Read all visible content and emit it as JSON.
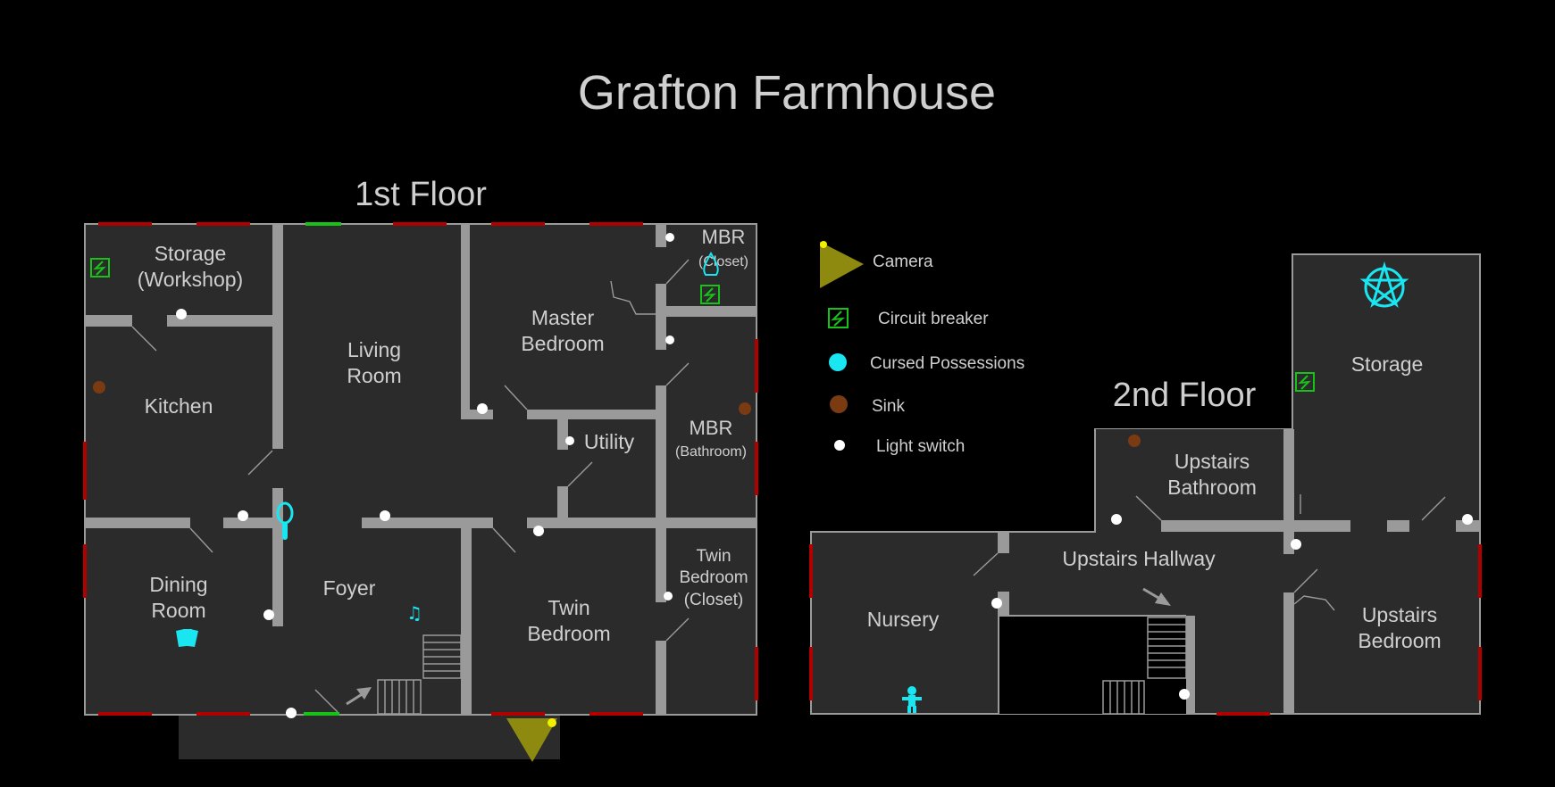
{
  "title": "Grafton Farmhouse",
  "floors": {
    "first": "1st Floor",
    "second": "2nd Floor"
  },
  "rooms": {
    "storage_workshop_1": "Storage",
    "storage_workshop_2": "(Workshop)",
    "living_1": "Living",
    "living_2": "Room",
    "master_1": "Master",
    "master_2": "Bedroom",
    "mbr_closet_1": "MBR",
    "mbr_closet_2": "(Closet)",
    "kitchen": "Kitchen",
    "utility": "Utility",
    "mbr_bath_1": "MBR",
    "mbr_bath_2": "(Bathroom)",
    "dining_1": "Dining",
    "dining_2": "Room",
    "foyer": "Foyer",
    "twin_1": "Twin",
    "twin_2": "Bedroom",
    "twin_closet_1": "Twin",
    "twin_closet_2": "Bedroom",
    "twin_closet_3": "(Closet)",
    "storage": "Storage",
    "up_bath_1": "Upstairs",
    "up_bath_2": "Bathroom",
    "up_hall": "Upstairs Hallway",
    "nursery": "Nursery",
    "up_bed_1": "Upstairs",
    "up_bed_2": "Bedroom"
  },
  "legend": [
    {
      "label": "Camera",
      "icon": "camera-icon"
    },
    {
      "label": "Circuit breaker",
      "icon": "circuit-breaker-icon"
    },
    {
      "label": "Cursed Possessions",
      "icon": "cursed-possession-icon"
    },
    {
      "label": "Sink",
      "icon": "sink-icon"
    },
    {
      "label": "Light switch",
      "icon": "light-switch-icon"
    }
  ],
  "colors": {
    "background": "#000000",
    "floor": "#2b2b2b",
    "wall": "#9a9a9a",
    "window": "#b00000",
    "exit_door": "#19c219",
    "cursed": "#19e6f0",
    "breaker": "#19c219",
    "sink": "#7a3a12",
    "switch": "#ffffff",
    "camera": "#8e8a10",
    "camera_dot": "#f0f000"
  }
}
